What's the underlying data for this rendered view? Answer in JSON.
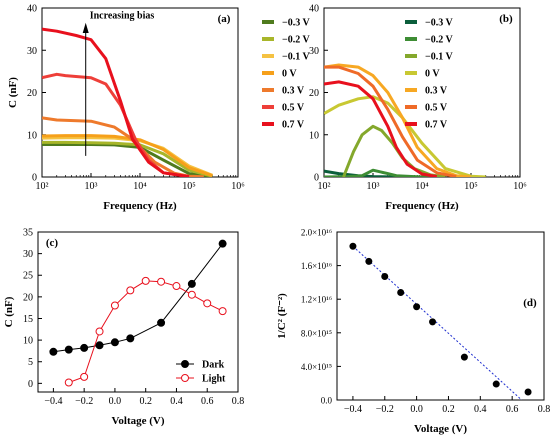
{
  "chart_data": [
    {
      "panel_label": "(a)",
      "type": "line",
      "xlabel": "Frequency (Hz)",
      "ylabel": "C (nF)",
      "xscale": "log",
      "xlim": [
        100,
        1000000
      ],
      "ylim": [
        0,
        40
      ],
      "xticks": [
        "10²",
        "10³",
        "10⁴",
        "10⁵",
        "10⁶"
      ],
      "yticks": [
        "0",
        "10",
        "20",
        "30",
        "40"
      ],
      "legend": "right",
      "annotation": "Increasing bias",
      "series": [
        {
          "name": "−0.3 V",
          "color": "#4f7b1e",
          "x": [
            100,
            300,
            1000,
            3000,
            10000,
            30000,
            100000,
            300000
          ],
          "y": [
            7.7,
            7.7,
            7.7,
            7.6,
            7.0,
            4.0,
            0.8,
            0.1
          ]
        },
        {
          "name": "−0.2 V",
          "color": "#a8b62a",
          "x": [
            100,
            300,
            1000,
            3000,
            10000,
            30000,
            100000,
            300000
          ],
          "y": [
            8.2,
            8.2,
            8.1,
            8.0,
            7.6,
            5.5,
            1.6,
            0.2
          ]
        },
        {
          "name": "−0.1 V",
          "color": "#f5c242",
          "x": [
            100,
            300,
            1000,
            3000,
            10000,
            30000,
            100000,
            300000
          ],
          "y": [
            9.2,
            9.3,
            9.3,
            9.2,
            8.6,
            6.8,
            2.6,
            0.4
          ]
        },
        {
          "name": "0 V",
          "color": "#f6a01a",
          "x": [
            100,
            300,
            1000,
            3000,
            10000,
            30000,
            100000,
            300000
          ],
          "y": [
            9.7,
            9.8,
            9.8,
            9.6,
            8.8,
            6.5,
            2.2,
            0.3
          ]
        },
        {
          "name": "0.3 V",
          "color": "#ee7a2c",
          "x": [
            100,
            200,
            1000,
            3000,
            6000,
            10000,
            20000,
            50000,
            100000,
            200000
          ],
          "y": [
            14.0,
            13.5,
            13.2,
            11.8,
            9.5,
            7.0,
            3.5,
            0.9,
            0.2,
            0.05
          ]
        },
        {
          "name": "0.5 V",
          "color": "#ee3f39",
          "x": [
            100,
            200,
            300,
            1000,
            2000,
            4000,
            8000,
            15000,
            30000,
            100000
          ],
          "y": [
            23.5,
            24.3,
            24.0,
            23.5,
            22.0,
            17.0,
            9.0,
            4.0,
            1.0,
            0.1
          ]
        },
        {
          "name": "0.7 V",
          "color": "#e8101d",
          "x": [
            100,
            200,
            500,
            1000,
            2000,
            4000,
            7000,
            15000,
            30000,
            100000
          ],
          "y": [
            35.0,
            34.5,
            33.5,
            32.5,
            28.0,
            18.0,
            9.0,
            3.5,
            1.0,
            0.1
          ]
        }
      ]
    },
    {
      "panel_label": "(b)",
      "type": "line",
      "xlabel": "Frequency (Hz)",
      "ylabel": "",
      "xscale": "log",
      "xlim": [
        100,
        1000000
      ],
      "ylim": [
        0,
        40
      ],
      "xticks": [
        "10²",
        "10³",
        "10⁴",
        "10⁵",
        "10⁶"
      ],
      "yticks": [
        "0",
        "10",
        "20",
        "30",
        "40"
      ],
      "legend": "right",
      "series": [
        {
          "name": "−0.3 V",
          "color": "#0b5e3b",
          "x": [
            100,
            200,
            500,
            1000,
            3000,
            10000,
            30000
          ],
          "y": [
            1.4,
            0.8,
            0.3,
            0.1,
            0.0,
            0.0,
            0.0
          ]
        },
        {
          "name": "−0.2 V",
          "color": "#3e8d34",
          "x": [
            100,
            300,
            600,
            1000,
            2000,
            3000,
            10000,
            30000
          ],
          "y": [
            0.0,
            0.1,
            0.3,
            1.6,
            0.8,
            0.3,
            0.0,
            0.0
          ]
        },
        {
          "name": "−0.1 V",
          "color": "#84a82c",
          "x": [
            250,
            400,
            600,
            1000,
            1500,
            2500,
            4000,
            7000,
            15000,
            30000
          ],
          "y": [
            0.0,
            6.0,
            10.0,
            12.0,
            11.0,
            8.0,
            4.5,
            2.0,
            0.5,
            0.0
          ]
        },
        {
          "name": "0 V",
          "color": "#c8c832",
          "x": [
            100,
            200,
            500,
            1000,
            2000,
            4000,
            10000,
            30000,
            100000,
            200000
          ],
          "y": [
            15.0,
            17.0,
            18.5,
            19.0,
            17.5,
            14.0,
            8.0,
            2.0,
            0.2,
            0.0
          ]
        },
        {
          "name": "0.3 V",
          "color": "#f7a823",
          "x": [
            100,
            200,
            500,
            1000,
            2000,
            4000,
            8000,
            20000,
            50000,
            100000
          ],
          "y": [
            26.0,
            26.5,
            26.0,
            24.0,
            20.0,
            14.0,
            7.0,
            2.0,
            0.3,
            0.0
          ]
        },
        {
          "name": "0.5 V",
          "color": "#ef6a28",
          "x": [
            100,
            200,
            500,
            1000,
            2000,
            4000,
            8000,
            20000,
            50000
          ],
          "y": [
            26.0,
            26.0,
            24.5,
            21.5,
            16.0,
            9.5,
            4.0,
            1.0,
            0.1
          ]
        },
        {
          "name": "0.7 V",
          "color": "#e8101d",
          "x": [
            100,
            200,
            500,
            1000,
            2000,
            3000,
            5000,
            10000,
            20000
          ],
          "y": [
            22.0,
            22.5,
            21.5,
            18.5,
            12.0,
            7.0,
            3.0,
            0.7,
            0.1
          ]
        }
      ]
    },
    {
      "panel_label": "(c)",
      "type": "line",
      "xlabel": "Voltage (V)",
      "ylabel": "C (nF)",
      "xlim": [
        -0.5,
        0.8
      ],
      "ylim": [
        -2,
        35
      ],
      "xticks": [
        "−0.4",
        "−0.2",
        "0.0",
        "0.2",
        "0.4",
        "0.6",
        "0.8"
      ],
      "yticks": [
        "0",
        "5",
        "10",
        "15",
        "20",
        "25",
        "30",
        "35"
      ],
      "legend": "bottom-right",
      "series": [
        {
          "name": "Dark",
          "color": "#000000",
          "marker_fill": "#000000",
          "x": [
            -0.4,
            -0.3,
            -0.2,
            -0.1,
            0.0,
            0.1,
            0.3,
            0.5,
            0.7
          ],
          "y": [
            7.3,
            7.8,
            8.2,
            8.8,
            9.5,
            10.4,
            14.0,
            23.0,
            32.3
          ]
        },
        {
          "name": "Light",
          "color": "#e8101d",
          "marker_fill": "#ffffff",
          "x": [
            -0.3,
            -0.2,
            -0.1,
            0.0,
            0.1,
            0.2,
            0.3,
            0.4,
            0.5,
            0.6,
            0.7
          ],
          "y": [
            0.2,
            1.5,
            12.0,
            18.0,
            21.5,
            23.7,
            23.5,
            22.5,
            20.5,
            18.5,
            16.7
          ]
        }
      ]
    },
    {
      "panel_label": "(d)",
      "type": "scatter",
      "xlabel": "Voltage (V)",
      "ylabel": "1/C² (F⁻²)",
      "xlim": [
        -0.5,
        0.8
      ],
      "ylim": [
        0,
        2e+16
      ],
      "xticks": [
        "−0.4",
        "−0.2",
        "0.0",
        "0.2",
        "0.4",
        "0.6",
        "0.8"
      ],
      "yticks": [
        "0.0",
        "4.0×10¹⁵",
        "8.0×10¹⁵",
        "1.2×10¹⁶",
        "1.6×10¹⁶",
        "2.0×10¹⁶"
      ],
      "series": [
        {
          "name": "",
          "color": "#000000",
          "x": [
            -0.4,
            -0.3,
            -0.2,
            -0.1,
            0.0,
            0.1,
            0.3,
            0.5,
            0.7
          ],
          "y": [
            1.83e+16,
            1.65e+16,
            1.47e+16,
            1.28e+16,
            1.11e+16,
            9300000000000000.0,
            5100000000000000.0,
            1900000000000000.0,
            950000000000000.0
          ]
        }
      ],
      "fit_line": {
        "color": "#1f2fcf",
        "x": [
          -0.4,
          0.66
        ],
        "y": [
          1.83e+16,
          0.0
        ]
      }
    }
  ]
}
